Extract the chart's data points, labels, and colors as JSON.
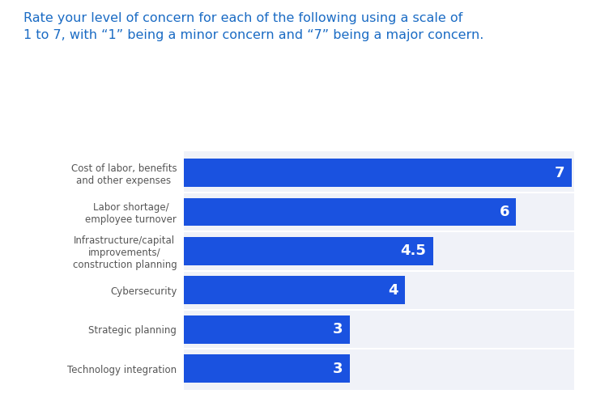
{
  "title_line1": "Rate your level of concern for each of the following using a scale of",
  "title_line2": "1 to 7, with “1” being a minor concern and “7” being a major concern.",
  "title_color": "#1a6bc4",
  "title_fontsize": 11.5,
  "background_color": "#ffffff",
  "plot_bg_color": "#f0f2f8",
  "categories": [
    "Cost of labor, benefits\nand other expenses",
    "Labor shortage/\nemployee turnover",
    "Infrastructure/capital\nimprovements/\nconstruction planning",
    "Cybersecurity",
    "Strategic planning",
    "Technology integration"
  ],
  "values": [
    7,
    6,
    4.5,
    4,
    3,
    3
  ],
  "bar_color": "#1a52e0",
  "label_color": "#ffffff",
  "label_fontsize": 13,
  "value_max": 7,
  "ylabel_fontsize": 8.5,
  "ylabel_color": "#555555",
  "bar_height": 0.72,
  "fig_width": 7.31,
  "fig_height": 4.92,
  "dpi": 100
}
